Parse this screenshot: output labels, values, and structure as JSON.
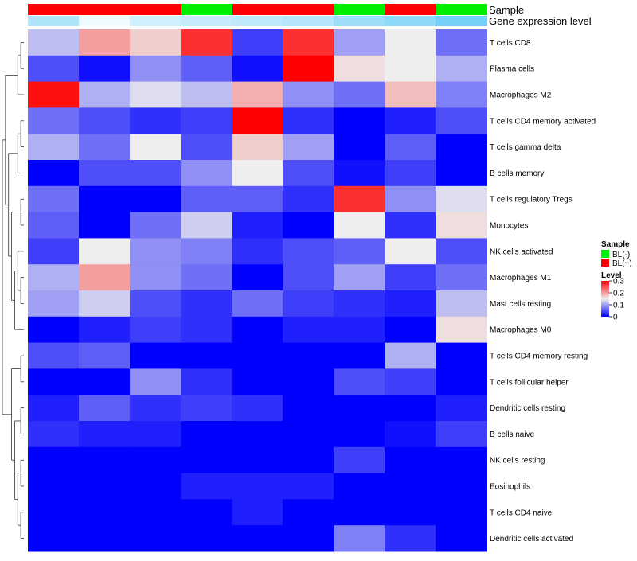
{
  "chart_data": {
    "type": "heatmap",
    "annotations": {
      "sample_track_label": "Sample",
      "expression_track_label": "Gene expression level",
      "sample_groups": [
        "BL(+)",
        "BL(+)",
        "BL(+)",
        "BL(-)",
        "BL(+)",
        "BL(+)",
        "BL(-)",
        "BL(+)",
        "BL(-)"
      ],
      "expression_levels": [
        0.5,
        0.1,
        0.3,
        0.35,
        0.4,
        0.45,
        0.6,
        0.7,
        0.85
      ]
    },
    "rows": [
      "T cells CD8",
      "Plasma cells",
      "Macrophages M2",
      "T cells CD4 memory activated",
      "T cells gamma delta",
      "B cells memory",
      "T cells regulatory  Tregs",
      "Monocytes",
      "NK cells activated",
      "Macrophages M1",
      "Mast cells resting",
      "Macrophages M0",
      "T cells CD4 memory resting",
      "T cells follicular helper",
      "Dendritic cells resting",
      "B cells naive",
      "NK cells resting",
      "Eosinophils",
      "T cells CD4 naive",
      "Dendritic cells activated"
    ],
    "values": [
      [
        0.12,
        0.2,
        0.17,
        0.27,
        0.04,
        0.27,
        0.1,
        0.15,
        0.07
      ],
      [
        0.05,
        0.01,
        0.09,
        0.06,
        0.01,
        0.3,
        0.16,
        0.15,
        0.11
      ],
      [
        0.29,
        0.11,
        0.14,
        0.12,
        0.19,
        0.09,
        0.07,
        0.18,
        0.08
      ],
      [
        0.07,
        0.05,
        0.03,
        0.04,
        0.3,
        0.03,
        0.0,
        0.02,
        0.05
      ],
      [
        0.11,
        0.07,
        0.15,
        0.05,
        0.17,
        0.1,
        0.0,
        0.06,
        0.0
      ],
      [
        0.0,
        0.05,
        0.05,
        0.09,
        0.15,
        0.05,
        0.01,
        0.04,
        0.0
      ],
      [
        0.07,
        0.0,
        0.0,
        0.06,
        0.06,
        0.03,
        0.27,
        0.09,
        0.14
      ],
      [
        0.06,
        0.0,
        0.07,
        0.13,
        0.02,
        0.0,
        0.15,
        0.03,
        0.16
      ],
      [
        0.04,
        0.15,
        0.09,
        0.08,
        0.03,
        0.05,
        0.06,
        0.15,
        0.05
      ],
      [
        0.11,
        0.2,
        0.09,
        0.07,
        0.0,
        0.05,
        0.1,
        0.04,
        0.07
      ],
      [
        0.1,
        0.13,
        0.05,
        0.03,
        0.07,
        0.04,
        0.03,
        0.02,
        0.12
      ],
      [
        0.0,
        0.02,
        0.04,
        0.03,
        0.0,
        0.02,
        0.02,
        0.0,
        0.16
      ],
      [
        0.05,
        0.06,
        0.0,
        0.0,
        0.0,
        0.0,
        0.0,
        0.11,
        0.0
      ],
      [
        0.0,
        0.0,
        0.09,
        0.03,
        0.0,
        0.0,
        0.05,
        0.04,
        0.0
      ],
      [
        0.02,
        0.06,
        0.03,
        0.04,
        0.03,
        0.0,
        0.0,
        0.0,
        0.02
      ],
      [
        0.03,
        0.02,
        0.02,
        0.0,
        0.0,
        0.0,
        0.0,
        0.01,
        0.04
      ],
      [
        0.0,
        0.0,
        0.0,
        0.0,
        0.0,
        0.0,
        0.04,
        0.0,
        0.0
      ],
      [
        0.0,
        0.0,
        0.0,
        0.02,
        0.02,
        0.02,
        0.0,
        0.0,
        0.0
      ],
      [
        0.0,
        0.0,
        0.0,
        0.0,
        0.02,
        0.0,
        0.0,
        0.0,
        0.0
      ],
      [
        0.0,
        0.0,
        0.0,
        0.0,
        0.0,
        0.0,
        0.08,
        0.03,
        0.0
      ]
    ],
    "color_scale": {
      "min": 0,
      "mid": 0.15,
      "max": 0.3,
      "low_color": "#0000ff",
      "mid_color": "#eeeeee",
      "high_color": "#ff0000"
    },
    "expression_colors": {
      "low": "#ffffff",
      "high": "#5bc8f5"
    },
    "legend": {
      "sample_title": "Sample",
      "sample_items": [
        {
          "label": "BL(-)",
          "color": "#00ee00"
        },
        {
          "label": "BL(+)",
          "color": "#ff0000"
        }
      ],
      "level_title": "Level",
      "level_ticks": [
        "0.3",
        "0.2",
        "0.1",
        "0"
      ],
      "level_tick_values": [
        0.3,
        0.2,
        0.1,
        0
      ],
      "placement": "right"
    },
    "dendrogram": "row"
  }
}
